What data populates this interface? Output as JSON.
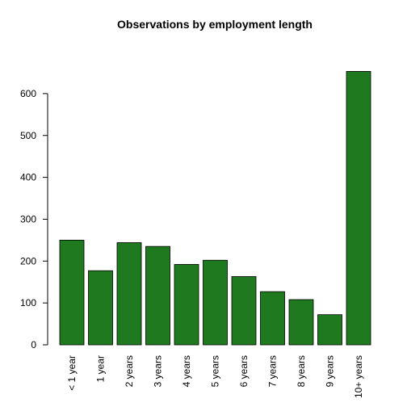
{
  "chart_data": {
    "type": "bar",
    "title": "Observations by employment length",
    "xlabel": "",
    "ylabel": "",
    "categories": [
      "< 1 year",
      "1 year",
      "2 years",
      "3 years",
      "4 years",
      "5 years",
      "6 years",
      "7 years",
      "8 years",
      "9 years",
      "10+ years"
    ],
    "values": [
      250,
      177,
      244,
      235,
      192,
      202,
      163,
      127,
      108,
      72,
      653
    ],
    "ylim": [
      0,
      653
    ],
    "yticks": [
      0,
      100,
      200,
      300,
      400,
      500,
      600
    ],
    "grid": false,
    "legend": "none",
    "bar_color": "#1f7a1f",
    "bar_stroke": "#000000"
  }
}
